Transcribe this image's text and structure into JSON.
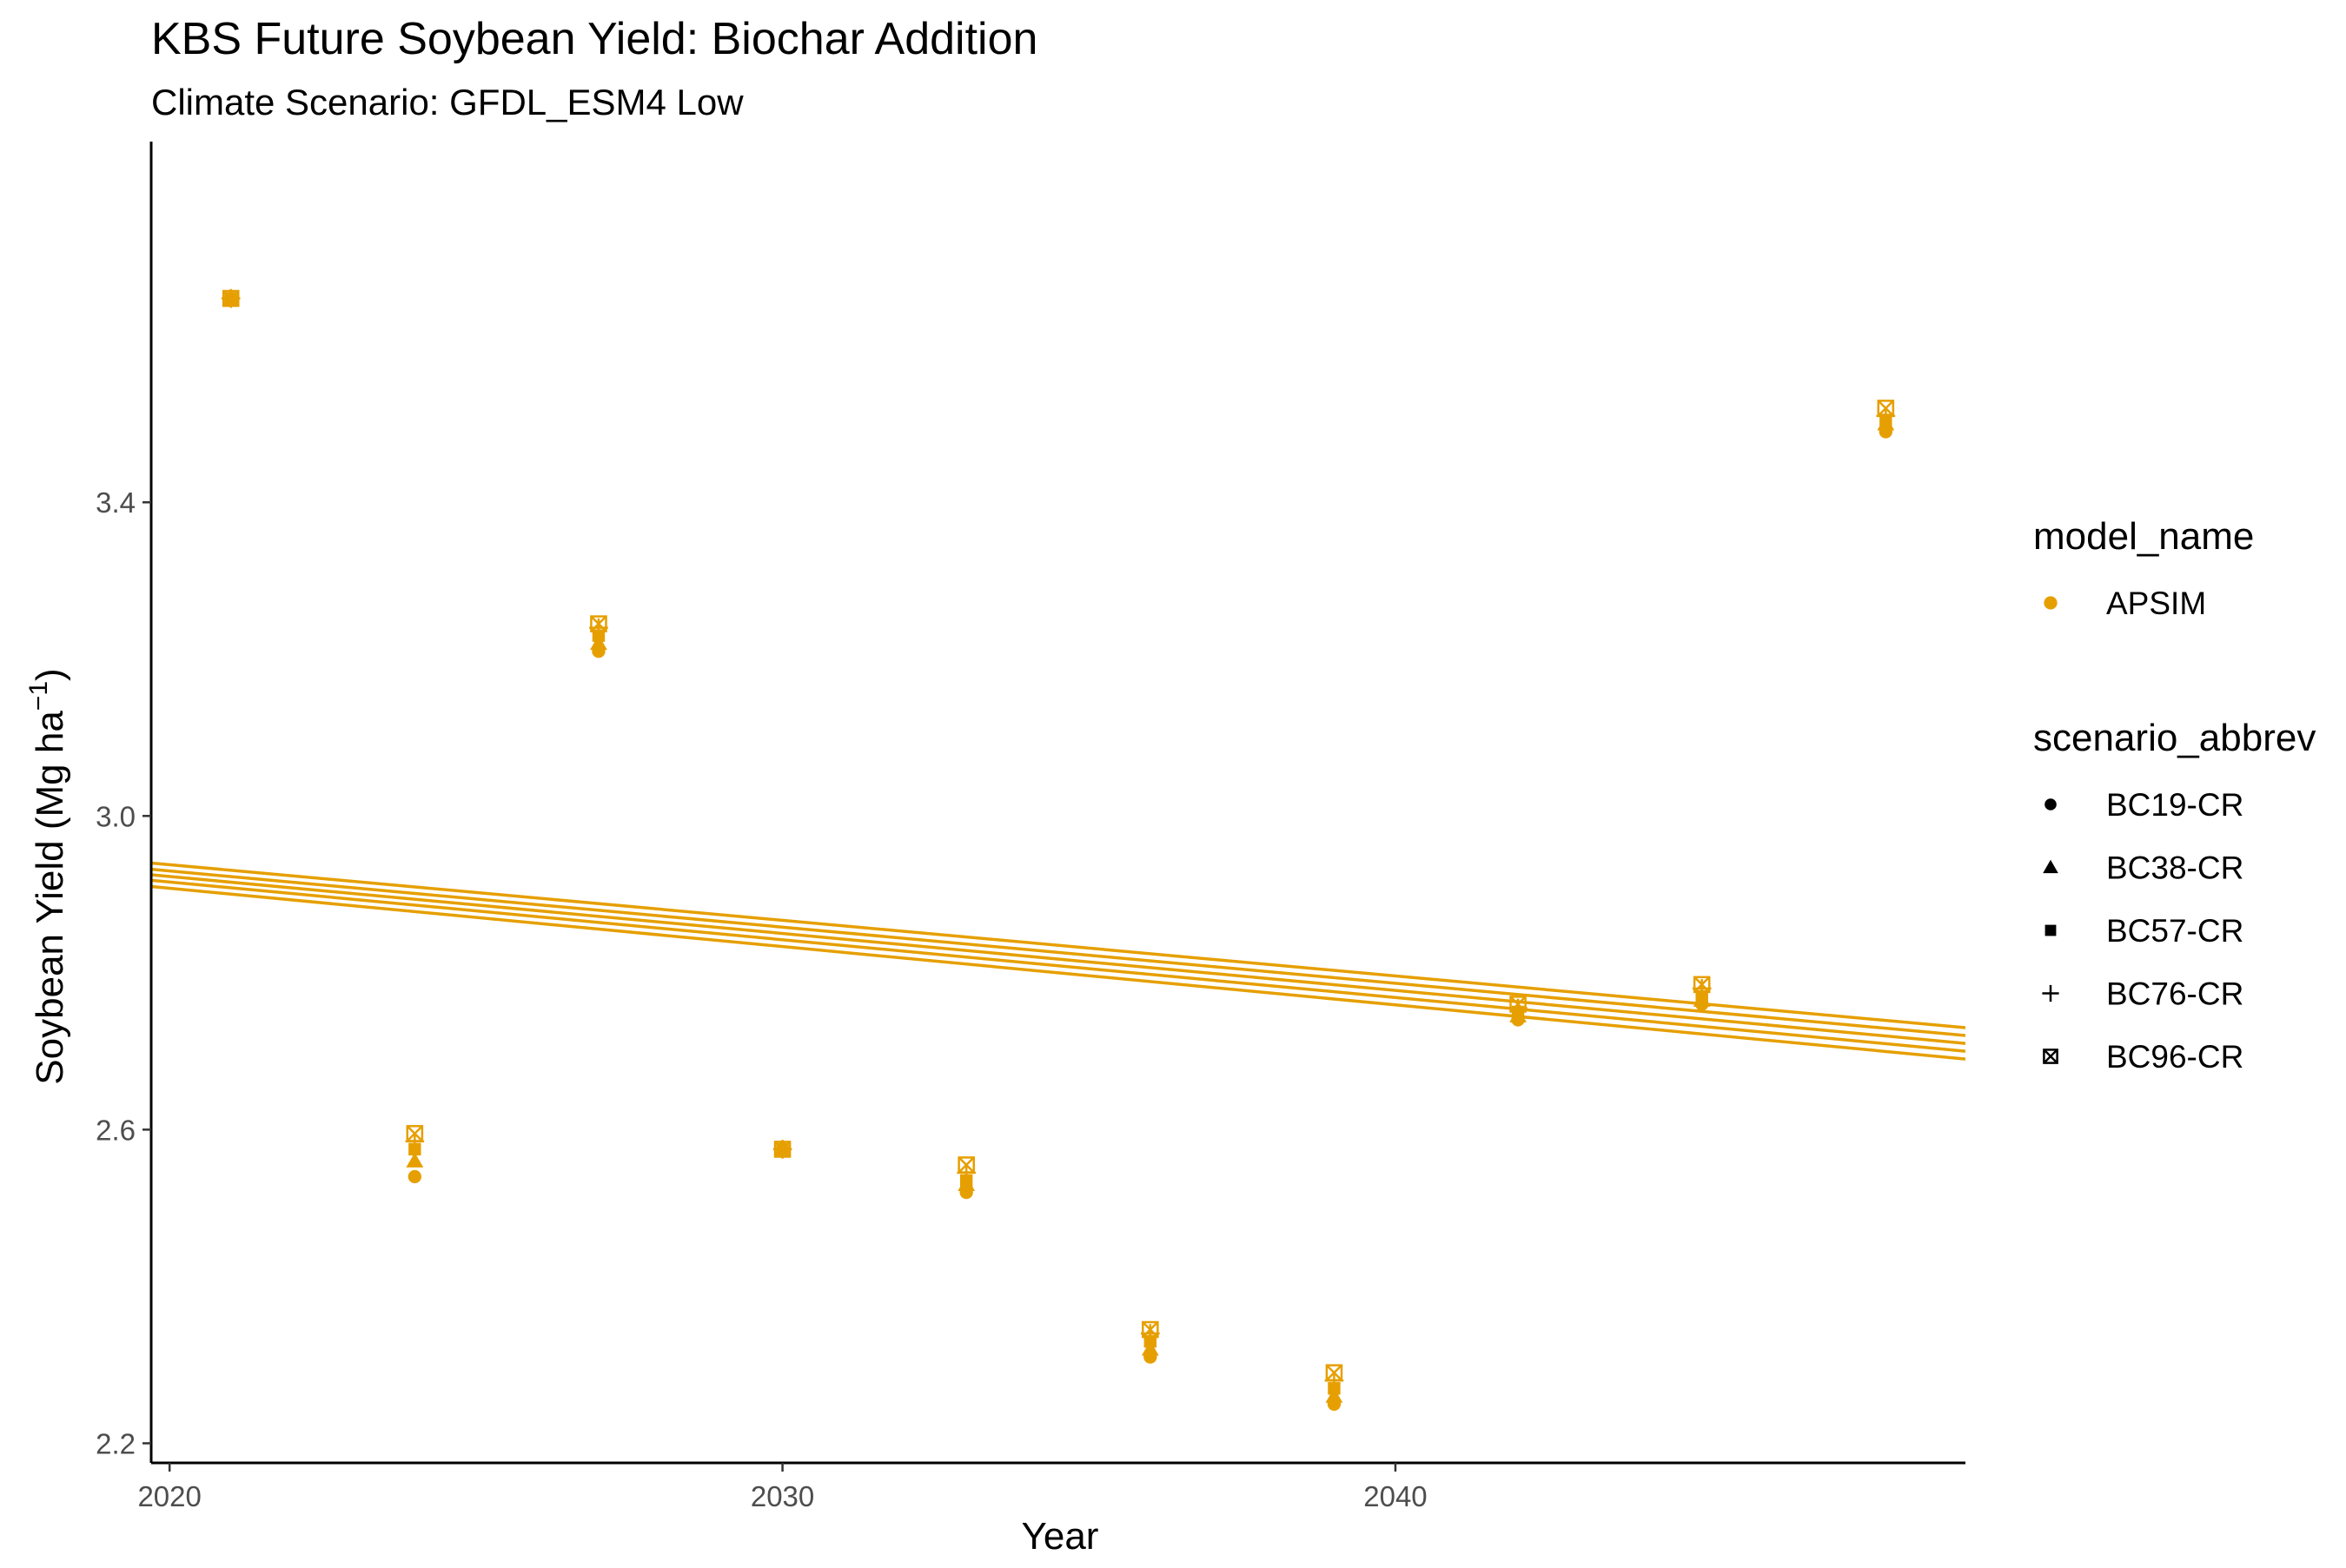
{
  "chart_data": {
    "type": "scatter",
    "title": "KBS Future Soybean Yield: Biochar Addition",
    "subtitle": "Climate Scenario: GFDL_ESM4 Low",
    "xlabel": "Year",
    "ylabel_main": "Soybean Yield (Mg ha",
    "ylabel_sup": "−1",
    "ylabel_close": ")",
    "xlim": [
      2019.7,
      2049.3
    ],
    "ylim": [
      2.175,
      3.86
    ],
    "x_ticks": [
      2020,
      2030,
      2040
    ],
    "y_ticks": [
      2.2,
      2.6,
      3.0,
      3.4
    ],
    "y_tick_labels": [
      "2.2",
      "2.6",
      "3.0",
      "3.4"
    ],
    "grid": false,
    "color": "#E69F00",
    "legend": {
      "position": "right",
      "color_title": "model_name",
      "color_entries": [
        {
          "label": "APSIM",
          "color": "#E69F00"
        }
      ],
      "shape_title": "scenario_abbrev",
      "shape_entries": [
        {
          "label": "BC19-CR",
          "shape": "circle"
        },
        {
          "label": "BC38-CR",
          "shape": "triangle"
        },
        {
          "label": "BC57-CR",
          "shape": "square"
        },
        {
          "label": "BC76-CR",
          "shape": "plus"
        },
        {
          "label": "BC96-CR",
          "shape": "boxx"
        }
      ]
    },
    "x": [
      2021,
      2024,
      2027,
      2030,
      2033,
      2036,
      2039,
      2042,
      2045,
      2048
    ],
    "series": [
      {
        "name": "BC19-CR",
        "shape": "circle",
        "values": [
          3.66,
          2.54,
          3.21,
          2.575,
          2.52,
          2.31,
          2.25,
          2.74,
          2.76,
          3.49
        ],
        "trend": [
          2.91,
          2.69
        ]
      },
      {
        "name": "BC38-CR",
        "shape": "triangle",
        "values": [
          3.66,
          2.56,
          3.22,
          2.575,
          2.53,
          2.32,
          2.26,
          2.745,
          2.765,
          3.5
        ],
        "trend": [
          2.918,
          2.7
        ]
      },
      {
        "name": "BC57-CR",
        "shape": "square",
        "values": [
          3.66,
          2.575,
          3.23,
          2.575,
          2.535,
          2.33,
          2.27,
          2.75,
          2.77,
          3.505
        ],
        "trend": [
          2.925,
          2.71
        ]
      },
      {
        "name": "BC76-CR",
        "shape": "plus",
        "values": [
          3.66,
          2.585,
          3.24,
          2.575,
          2.545,
          2.34,
          2.28,
          2.755,
          2.78,
          3.51
        ],
        "trend": [
          2.932,
          2.72
        ]
      },
      {
        "name": "BC96-CR",
        "shape": "boxx",
        "values": [
          3.66,
          2.595,
          3.245,
          2.575,
          2.555,
          2.345,
          2.29,
          2.76,
          2.785,
          3.52
        ],
        "trend": [
          2.94,
          2.73
        ]
      }
    ]
  }
}
